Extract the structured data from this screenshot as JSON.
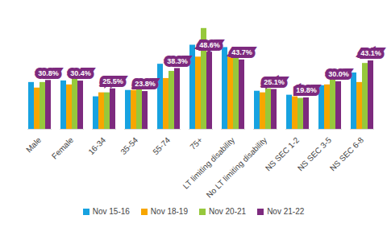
{
  "chart_data": {
    "type": "bar",
    "categories": [
      "Male",
      "Female",
      "16-34",
      "35-54",
      "55-74",
      "75+",
      "LT limiting disability",
      "No LT limiting disability",
      "NS SEC 1-2",
      "NS SEC 3-5",
      "NS SEC 6-8"
    ],
    "series": [
      {
        "name": "Nov 15-16",
        "color": "#17a2e0",
        "values": [
          29.5,
          30.5,
          20.5,
          24.5,
          41,
          53,
          51.5,
          24,
          21.5,
          27.5,
          35.5
        ]
      },
      {
        "name": "Nov 18-19",
        "color": "#f7a600",
        "values": [
          26,
          28,
          23,
          24.5,
          32,
          45.5,
          46.5,
          23,
          20.5,
          28,
          29.5
        ]
      },
      {
        "name": "Nov 20-21",
        "color": "#96c83c",
        "values": [
          29.5,
          32.5,
          23,
          26.5,
          36.5,
          63.5,
          46.5,
          25.5,
          19.5,
          32.5,
          41.5
        ]
      },
      {
        "name": "Nov 21-22",
        "color": "#7d2a7e",
        "values": [
          30.8,
          30.4,
          25.5,
          23.8,
          38.3,
          48.6,
          43.7,
          25.1,
          19.8,
          30.0,
          43.1
        ],
        "value_labels": [
          "30.8%",
          "30.4%",
          "25.5%",
          "23.8%",
          "38.3%",
          "48.6%",
          "43.7%",
          "25.1%",
          "19.8%",
          "30.0%",
          "43.1%"
        ],
        "data_labels": true
      }
    ],
    "ylim": [
      0,
      70
    ],
    "grid": false,
    "legend": "bottom",
    "tick_labels": "x"
  }
}
